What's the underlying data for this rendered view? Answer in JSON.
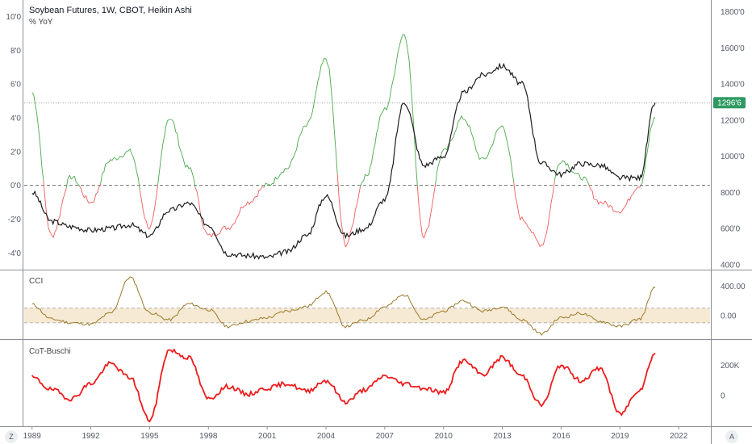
{
  "chart_data": [
    {
      "type": "line",
      "title": "Soybean Futures, 1W, CBOT, Heikin Ashi",
      "subtitle": "% YoY",
      "x": [
        1989,
        1990,
        1991,
        1992,
        1993,
        1994,
        1995,
        1996,
        1997,
        1998,
        1999,
        2000,
        2001,
        2002,
        2003,
        2004,
        2005,
        2006,
        2007,
        2008,
        2009,
        2010,
        2011,
        2012,
        2013,
        2014,
        2015,
        2016,
        2017,
        2018,
        2019,
        2020,
        2020.8
      ],
      "series": [
        {
          "values": [
            800,
            640,
            610,
            590,
            600,
            620,
            560,
            700,
            740,
            620,
            460,
            450,
            440,
            470,
            560,
            780,
            560,
            600,
            760,
            1300,
            950,
            1000,
            1350,
            1450,
            1500,
            1400,
            960,
            900,
            960,
            950,
            880,
            880,
            1296.75
          ],
          "axis": "right"
        },
        {
          "values": [
            5.5,
            -3.0,
            0.5,
            -1.0,
            1.5,
            2.0,
            -2.5,
            4.0,
            1.0,
            -3.0,
            -2.5,
            -1.0,
            0.0,
            1.0,
            3.5,
            7.5,
            -3.5,
            0.5,
            4.5,
            9.0,
            -3.0,
            2.0,
            4.0,
            1.5,
            3.5,
            -2.0,
            -3.5,
            1.5,
            0.5,
            -1.0,
            -1.5,
            0.0,
            4.0
          ],
          "axis": "left",
          "color_pos": "#4aa84a",
          "color_neg": "#ef5b5b"
        }
      ],
      "last_price_label": "1296'6",
      "left_ticks": [
        "10'0",
        "8'0",
        "6'0",
        "4'0",
        "2'0",
        "0'0",
        "-2'0",
        "-4'0"
      ],
      "left_tick_values": [
        10,
        8,
        6,
        4,
        2,
        0,
        -2,
        -4
      ],
      "right_ticks": [
        "1800'0",
        "1600'0",
        "1400'0",
        "1200'0",
        "1000'0",
        "800'0",
        "600'0",
        "400'0"
      ],
      "right_tick_values": [
        1800,
        1600,
        1400,
        1200,
        1000,
        800,
        600,
        400
      ],
      "left_range": [
        -4.8,
        10.6
      ],
      "right_range": [
        390,
        1830
      ],
      "price_color": "#1d1d1d"
    },
    {
      "type": "line",
      "title": "CCI",
      "x": [
        1989,
        1990,
        1991,
        1992,
        1993,
        1994,
        1995,
        1996,
        1997,
        1998,
        1999,
        2000,
        2001,
        2002,
        2003,
        2004,
        2005,
        2006,
        2007,
        2008,
        2009,
        2010,
        2011,
        2012,
        2013,
        2014,
        2015,
        2016,
        2017,
        2018,
        2019,
        2020,
        2020.8
      ],
      "series": [
        {
          "values": [
            150,
            -50,
            -100,
            -120,
            30,
            520,
            40,
            -60,
            160,
            80,
            -150,
            -80,
            -30,
            60,
            120,
            320,
            -150,
            -60,
            120,
            280,
            -60,
            60,
            200,
            60,
            120,
            -60,
            -250,
            -30,
            30,
            -80,
            -150,
            -50,
            380
          ]
        }
      ],
      "band": [
        -100,
        100
      ],
      "right_ticks": [
        "400.00",
        "0.00"
      ],
      "right_tick_values": [
        400,
        0
      ],
      "range": [
        -300,
        560
      ],
      "color": "#9c7a2b",
      "band_color": "#f6ead4"
    },
    {
      "type": "line",
      "title": "CoT-Buschi",
      "x": [
        1989,
        1990,
        1991,
        1992,
        1993,
        1994,
        1995,
        1996,
        1997,
        1998,
        1999,
        2000,
        2001,
        2002,
        2003,
        2004,
        2005,
        2006,
        2007,
        2008,
        2009,
        2010,
        2011,
        2012,
        2013,
        2014,
        2015,
        2016,
        2017,
        2018,
        2019,
        2020,
        2020.8
      ],
      "series": [
        {
          "values": [
            120000,
            40000,
            -20000,
            80000,
            210000,
            120000,
            -160000,
            300000,
            250000,
            -20000,
            60000,
            10000,
            50000,
            80000,
            30000,
            100000,
            -40000,
            40000,
            130000,
            80000,
            50000,
            20000,
            230000,
            140000,
            250000,
            130000,
            -60000,
            200000,
            100000,
            180000,
            -120000,
            40000,
            280000
          ]
        }
      ],
      "right_ticks": [
        "200K",
        "0"
      ],
      "right_tick_values": [
        200000,
        0
      ],
      "range": [
        -190000,
        330000
      ],
      "color": "#ee1c1c"
    }
  ],
  "x_axis": {
    "labels": [
      "1989",
      "1992",
      "1995",
      "1998",
      "2001",
      "2004",
      "2007",
      "2010",
      "2013",
      "2016",
      "2019",
      "2022"
    ],
    "values": [
      1989,
      1992,
      1995,
      1998,
      2001,
      2004,
      2007,
      2010,
      2013,
      2016,
      2019,
      2022
    ],
    "range": [
      1988.6,
      2023.6
    ]
  },
  "controls": {
    "left": "Z",
    "right": "A"
  }
}
